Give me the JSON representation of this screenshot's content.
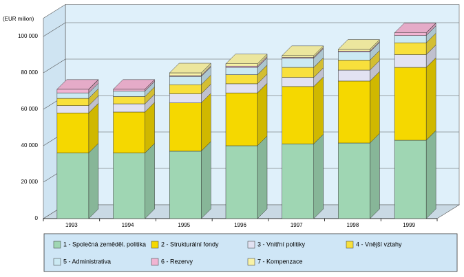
{
  "chart_data": {
    "type": "bar3d-stacked",
    "y_label": "(EUR milion)",
    "categories": [
      "1993",
      "1994",
      "1995",
      "1996",
      "1997",
      "1998",
      "1999"
    ],
    "series": [
      {
        "name": "1 - Společná zeměděl. politika",
        "color": "#9fd6b3",
        "values": [
          36000,
          36000,
          37000,
          40000,
          41000,
          41500,
          43000
        ]
      },
      {
        "name": "2 - Strukturální fondy",
        "color": "#f5d800",
        "values": [
          22000,
          22500,
          26500,
          29000,
          31500,
          34000,
          40000
        ]
      },
      {
        "name": "3 - Vnitřní politiky",
        "color": "#e2e2f2",
        "values": [
          4000,
          4500,
          5000,
          5000,
          5000,
          6000,
          7000
        ]
      },
      {
        "name": "4 - Vnější vztahy",
        "color": "#f8e03c",
        "values": [
          4000,
          4000,
          5000,
          5000,
          5500,
          5500,
          6500
        ]
      },
      {
        "name": "5 - Administrativa",
        "color": "#cbe9f3",
        "values": [
          3000,
          3000,
          4500,
          4000,
          5000,
          4500,
          4000
        ]
      },
      {
        "name": "6 - Rezervy",
        "color": "#f1b4d2",
        "values": [
          2000,
          1000,
          500,
          700,
          500,
          500,
          1500
        ]
      },
      {
        "name": "7 - Kompenzace",
        "color": "#f8f2a6",
        "values": [
          0,
          0,
          1500,
          1300,
          1000,
          1000,
          0
        ]
      }
    ],
    "ylim": [
      0,
      110000
    ],
    "yticks": [
      0,
      {
        "value": 20000,
        "label": "20 000"
      },
      {
        "value": 40000,
        "label": "40 000"
      },
      {
        "value": 60000,
        "label": "60 000"
      },
      {
        "value": 80000,
        "label": "80 000"
      },
      {
        "value": 100000,
        "label": "100 000"
      }
    ],
    "grid": true,
    "legend": "bottom"
  }
}
